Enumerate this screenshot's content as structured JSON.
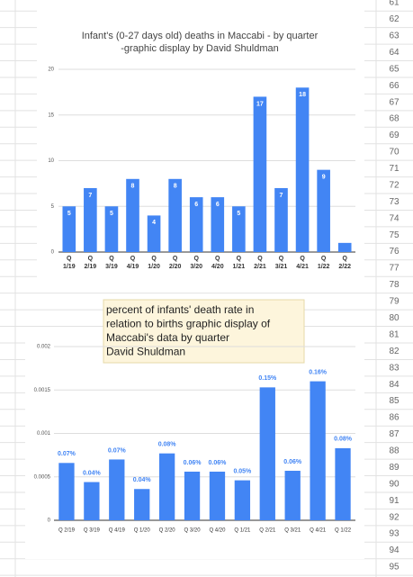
{
  "chart_data": [
    {
      "type": "bar",
      "title": "Infant's (0-27 days old) deaths in Maccabi - by quarter -graphic display by David Shuldman",
      "categories": [
        "Q 1/19",
        "Q 2/19",
        "Q 3/19",
        "Q 4/19",
        "Q 1/20",
        "Q 2/20",
        "Q 3/20",
        "Q 4/20",
        "Q 1/21",
        "Q 2/21",
        "Q 3/21",
        "Q 4/21",
        "Q 1/22",
        "Q 2/22"
      ],
      "values": [
        5,
        7,
        5,
        8,
        4,
        8,
        6,
        6,
        5,
        17,
        7,
        18,
        9,
        1
      ],
      "color": "#4285f4",
      "ylim": [
        0,
        20
      ],
      "yticks": [
        0,
        5,
        10,
        15,
        20
      ],
      "grid": true
    },
    {
      "type": "bar",
      "categories": [
        "Q 2/19",
        "Q 3/19",
        "Q 4/19",
        "Q 1/20",
        "Q 2/20",
        "Q 3/20",
        "Q 4/20",
        "Q 1/21",
        "Q 2/21",
        "Q 3/21",
        "Q 4/21",
        "Q 1/22"
      ],
      "values": [
        0.00066,
        0.00044,
        0.0007,
        0.00036,
        0.00077,
        0.00056,
        0.00056,
        0.00046,
        0.00153,
        0.00057,
        0.0016,
        0.00083
      ],
      "value_labels": [
        "0.07%",
        "0.04%",
        "0.07%",
        "0.04%",
        "0.08%",
        "0.06%",
        "0.06%",
        "0.05%",
        "0.15%",
        "0.06%",
        "0.16%",
        "0.08%"
      ],
      "color": "#4285f4",
      "ylim": [
        0,
        0.002
      ],
      "yticks": [
        0,
        0.0005,
        0.001,
        0.0015,
        0.002
      ],
      "grid": true
    }
  ],
  "note": {
    "lines": [
      "percent of infants' death rate in",
      "relation to births graphic display of",
      "Maccabi's data by quarter",
      "David Shuldman"
    ]
  },
  "row_numbers": [
    61,
    62,
    63,
    64,
    65,
    66,
    67,
    68,
    69,
    70,
    71,
    72,
    73,
    74,
    75,
    76,
    77,
    78,
    79,
    80,
    81,
    82,
    83,
    84,
    85,
    86,
    87,
    88,
    89,
    90,
    91,
    92,
    93,
    94,
    95
  ]
}
